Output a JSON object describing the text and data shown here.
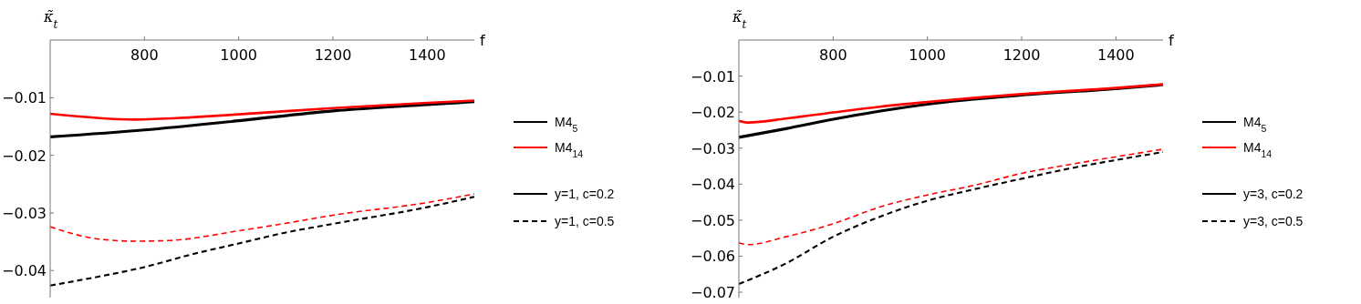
{
  "chart_data": [
    {
      "type": "line",
      "xlabel": "f",
      "ylabel": "κ̃$_{t}$",
      "xlim": [
        600,
        1500
      ],
      "xticks": [
        800,
        1000,
        1200,
        1400
      ],
      "ylim": [
        -0.0447,
        0
      ],
      "yticks": [
        -0.04,
        -0.03,
        -0.02,
        -0.01
      ],
      "legend": "right",
      "grid": false,
      "annotations": [
        "y=1, c=0.2",
        "y=1, c=0.5"
      ],
      "series": [
        {
          "name": "M4$_{5}$",
          "color": "#000000",
          "line_style": "solid",
          "x": [
            600,
            800,
            1000,
            1200,
            1400,
            1500
          ],
          "values": [
            -0.0168,
            -0.0156,
            -0.014,
            -0.0123,
            -0.0112,
            -0.0107
          ]
        },
        {
          "name": "M4$_{14}$",
          "color": "#ff0000",
          "line_style": "solid",
          "x": [
            600,
            780,
            900,
            1000,
            1200,
            1400,
            1500
          ],
          "values": [
            -0.0128,
            -0.0138,
            -0.0134,
            -0.0129,
            -0.0118,
            -0.0109,
            -0.0105
          ]
        },
        {
          "color": "#000000",
          "line_style": "dashed",
          "x": [
            600,
            700,
            800,
            900,
            1000,
            1100,
            1200,
            1400,
            1500
          ],
          "values": [
            -0.0426,
            -0.0411,
            -0.0394,
            -0.0372,
            -0.0353,
            -0.0334,
            -0.0319,
            -0.029,
            -0.0272
          ]
        },
        {
          "color": "#ff0000",
          "line_style": "dashed",
          "x": [
            600,
            700,
            780,
            850,
            1000,
            1100,
            1200,
            1400,
            1500
          ],
          "values": [
            -0.0324,
            -0.0345,
            -0.0349,
            -0.0348,
            -0.0331,
            -0.0318,
            -0.0304,
            -0.0282,
            -0.0267
          ]
        }
      ]
    },
    {
      "type": "line",
      "xlabel": "f",
      "ylabel": "κ̃$_{t}$",
      "xlim": [
        600,
        1500
      ],
      "xticks": [
        800,
        1000,
        1200,
        1400
      ],
      "ylim": [
        -0.0715,
        0
      ],
      "yticks": [
        -0.07,
        -0.06,
        -0.05,
        -0.04,
        -0.03,
        -0.02,
        -0.01
      ],
      "legend": "right",
      "grid": false,
      "annotations": [
        "y=3, c=0.2",
        "y=3, c=0.5"
      ],
      "series": [
        {
          "name": "M4$_{5}$",
          "color": "#000000",
          "line_style": "solid",
          "x": [
            600,
            700,
            800,
            900,
            1000,
            1200,
            1400,
            1500
          ],
          "values": [
            -0.027,
            -0.0246,
            -0.022,
            -0.0197,
            -0.0178,
            -0.0153,
            -0.0135,
            -0.0124
          ]
        },
        {
          "name": "M4$_{14}$",
          "color": "#ff0000",
          "line_style": "solid",
          "x": [
            600,
            620,
            700,
            800,
            900,
            1000,
            1200,
            1400,
            1500
          ],
          "values": [
            -0.0224,
            -0.0229,
            -0.0218,
            -0.0201,
            -0.0185,
            -0.0172,
            -0.015,
            -0.0133,
            -0.0123
          ]
        },
        {
          "color": "#000000",
          "line_style": "dashed",
          "x": [
            600,
            700,
            800,
            900,
            1000,
            1100,
            1200,
            1300,
            1400,
            1500
          ],
          "values": [
            -0.0677,
            -0.062,
            -0.0546,
            -0.049,
            -0.0446,
            -0.0414,
            -0.0385,
            -0.0357,
            -0.0333,
            -0.0311
          ]
        },
        {
          "color": "#ff0000",
          "line_style": "dashed",
          "x": [
            600,
            620,
            700,
            800,
            900,
            1000,
            1100,
            1200,
            1300,
            1400,
            1500
          ],
          "values": [
            -0.0563,
            -0.0568,
            -0.0546,
            -0.051,
            -0.0463,
            -0.043,
            -0.0403,
            -0.037,
            -0.0346,
            -0.0324,
            -0.0303
          ]
        }
      ]
    }
  ]
}
